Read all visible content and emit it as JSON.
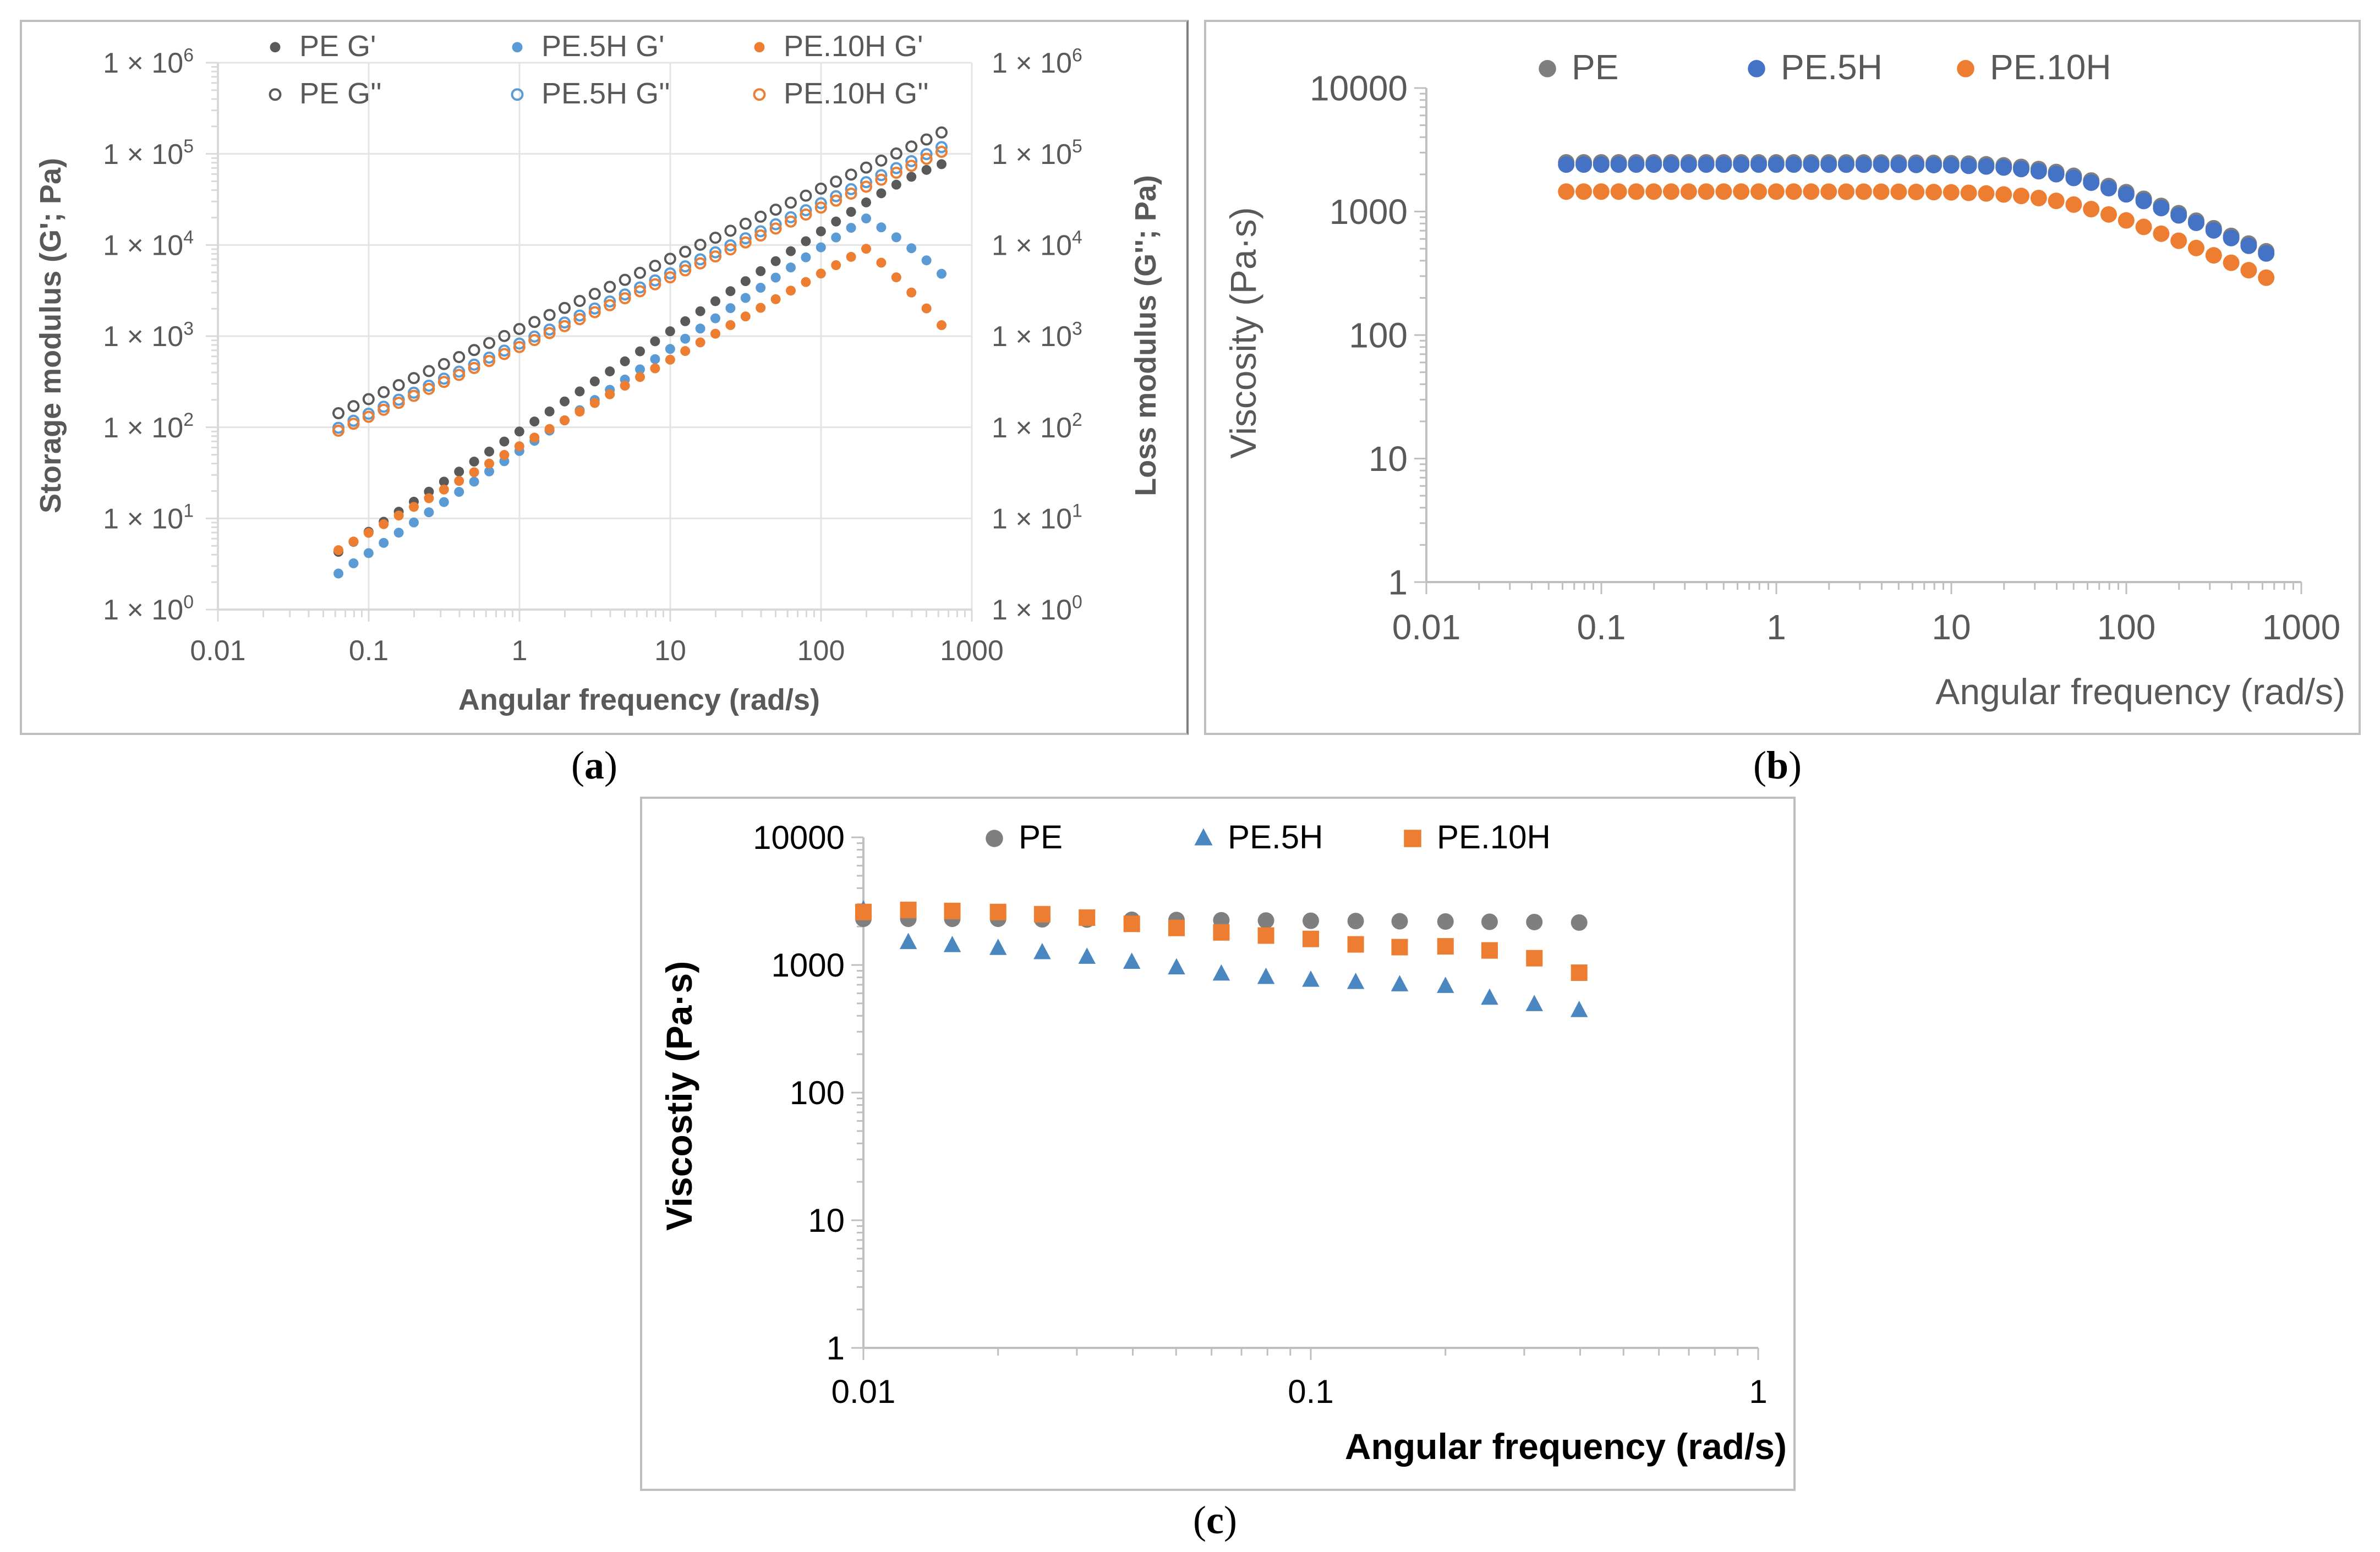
{
  "chart_data": [
    {
      "id": "a",
      "type": "scatter",
      "caption_letter": "a",
      "xscale": "log",
      "xlim": [
        0.01,
        1000
      ],
      "ylim": [
        1,
        1000000
      ],
      "xlabel": "Angular frequency (rad/s)",
      "ylabel": "Storage modulus (G'; Pa)",
      "y2label": "Loss modulus (G''; Pa)",
      "x_ticks": [
        {
          "v": 0.01,
          "label": "0.01"
        },
        {
          "v": 0.1,
          "label": "0.1"
        },
        {
          "v": 1,
          "label": "1"
        },
        {
          "v": 10,
          "label": "10"
        },
        {
          "v": 100,
          "label": "100"
        },
        {
          "v": 1000,
          "label": "1000"
        }
      ],
      "y_ticks": [
        {
          "v": 1,
          "label": "1 × 10",
          "exp": "0"
        },
        {
          "v": 10,
          "label": "1 × 10",
          "exp": "1"
        },
        {
          "v": 100,
          "label": "1 × 10",
          "exp": "2"
        },
        {
          "v": 1000,
          "label": "1 × 10",
          "exp": "3"
        },
        {
          "v": 10000,
          "label": "1 × 10",
          "exp": "4"
        },
        {
          "v": 100000,
          "label": "1 × 10",
          "exp": "5"
        },
        {
          "v": 1000000,
          "label": "1 × 10",
          "exp": "6"
        }
      ],
      "curves": [
        {
          "name": "PE G'",
          "color": "#595959",
          "marker": "filled",
          "x_start": 0.063,
          "x_end": 630,
          "n": 41,
          "formula": "gprime",
          "a": 90,
          "b": 1.1,
          "peak": 110000,
          "drop": 0
        },
        {
          "name": "PE.5H G'",
          "color": "#5b9bd5",
          "marker": "filled",
          "x_start": 0.063,
          "x_end": 630,
          "n": 41,
          "formula": "gprime",
          "a": 55,
          "b": 1.12,
          "peak": 60000,
          "drop": 0.9
        },
        {
          "name": "PE.10H G'",
          "color": "#ed7d31",
          "marker": "filled",
          "x_start": 0.063,
          "x_end": 630,
          "n": 41,
          "formula": "gprime_10h",
          "a": 62,
          "b": 0.95,
          "peak": 32000,
          "drop": 1.1
        },
        {
          "name": "PE G''",
          "color": "#595959",
          "marker": "open",
          "x_start": 0.063,
          "x_end": 630,
          "n": 41,
          "formula": "power",
          "a": 1200,
          "b": 0.77
        },
        {
          "name": "PE.5H G''",
          "color": "#5b9bd5",
          "marker": "open",
          "x_start": 0.063,
          "x_end": 630,
          "n": 41,
          "formula": "power",
          "a": 830,
          "b": 0.77
        },
        {
          "name": "PE.10H G''",
          "color": "#ed7d31",
          "marker": "open",
          "x_start": 0.063,
          "x_end": 630,
          "n": 41,
          "formula": "power",
          "a": 760,
          "b": 0.765
        }
      ],
      "legend": [
        {
          "label": "PE G'",
          "color": "#595959",
          "marker": "filled"
        },
        {
          "label": "PE.5H G'",
          "color": "#5b9bd5",
          "marker": "filled"
        },
        {
          "label": "PE.10H G'",
          "color": "#ed7d31",
          "marker": "filled"
        },
        {
          "label": "PE G''",
          "color": "#595959",
          "marker": "open"
        },
        {
          "label": "PE.5H G''",
          "color": "#5b9bd5",
          "marker": "open"
        },
        {
          "label": "PE.10H G''",
          "color": "#ed7d31",
          "marker": "open"
        }
      ]
    },
    {
      "id": "b",
      "type": "scatter",
      "caption_letter": "b",
      "xscale": "log",
      "xlim": [
        0.01,
        1000
      ],
      "ylim": [
        1,
        10000
      ],
      "xlabel": "Angular frequency (rad/s)",
      "ylabel": "Viscosity (Pa·s)",
      "x_ticks": [
        {
          "v": 0.01,
          "label": "0.01"
        },
        {
          "v": 0.1,
          "label": "0.1"
        },
        {
          "v": 1,
          "label": "1"
        },
        {
          "v": 10,
          "label": "10"
        },
        {
          "v": 100,
          "label": "100"
        },
        {
          "v": 1000,
          "label": "1000"
        }
      ],
      "y_ticks": [
        {
          "v": 1,
          "label": "1"
        },
        {
          "v": 10,
          "label": "10"
        },
        {
          "v": 100,
          "label": "100"
        },
        {
          "v": 1000,
          "label": "1000"
        },
        {
          "v": 10000,
          "label": "10000"
        }
      ],
      "curves": [
        {
          "name": "PE",
          "color": "#7f7f7f",
          "marker": "filled",
          "x_start": 0.063,
          "x_end": 630,
          "n": 41,
          "formula": "carreau",
          "eta0": 2500,
          "lambda": 0.022,
          "n_exp": 0.37
        },
        {
          "name": "PE.5H",
          "color": "#4472c4",
          "marker": "filled",
          "x_start": 0.063,
          "x_end": 630,
          "n": 41,
          "formula": "carreau",
          "eta0": 2400,
          "lambda": 0.022,
          "n_exp": 0.37
        },
        {
          "name": "PE.10H",
          "color": "#ed7d31",
          "marker": "filled",
          "x_start": 0.063,
          "x_end": 630,
          "n": 41,
          "formula": "carreau",
          "eta0": 1450,
          "lambda": 0.022,
          "n_exp": 0.39
        }
      ],
      "legend": [
        {
          "label": "PE",
          "color": "#7f7f7f",
          "marker": "filled"
        },
        {
          "label": "PE.5H",
          "color": "#4472c4",
          "marker": "filled"
        },
        {
          "label": "PE.10H",
          "color": "#ed7d31",
          "marker": "filled"
        }
      ]
    },
    {
      "id": "c",
      "type": "scatter",
      "caption_letter": "c",
      "xscale": "log",
      "xlim": [
        0.01,
        1
      ],
      "ylim": [
        1,
        10000
      ],
      "xlabel": "Angular frequency (rad/s)",
      "ylabel": "Viscostiy (Pa·s)",
      "x_ticks": [
        {
          "v": 0.01,
          "label": "0.01"
        },
        {
          "v": 0.1,
          "label": "0.1"
        },
        {
          "v": 1,
          "label": "1"
        }
      ],
      "y_ticks": [
        {
          "v": 1,
          "label": "1"
        },
        {
          "v": 10,
          "label": "10"
        },
        {
          "v": 100,
          "label": "100"
        },
        {
          "v": 1000,
          "label": "1000"
        },
        {
          "v": 10000,
          "label": "10000"
        }
      ],
      "x": [
        0.01,
        0.0126,
        0.0158,
        0.02,
        0.0251,
        0.0316,
        0.0398,
        0.0501,
        0.0631,
        0.0794,
        0.1,
        0.126,
        0.158,
        0.2,
        0.251,
        0.316,
        0.398
      ],
      "series": [
        {
          "name": "PE",
          "color": "#7f7f7f",
          "marker": "circle",
          "values": [
            2300,
            2300,
            2300,
            2300,
            2280,
            2270,
            2260,
            2250,
            2240,
            2230,
            2220,
            2210,
            2200,
            2190,
            2180,
            2170,
            2150
          ]
        },
        {
          "name": "PE.5H",
          "color": "#4a86c0",
          "marker": "triangle",
          "values": [
            2700,
            1500,
            1420,
            1350,
            1250,
            1150,
            1050,
            950,
            850,
            800,
            760,
            730,
            700,
            680,
            550,
            490,
            440
          ]
        },
        {
          "name": "PE.10H",
          "color": "#ed7d31",
          "marker": "square",
          "values": [
            2600,
            2700,
            2650,
            2600,
            2500,
            2350,
            2100,
            1950,
            1800,
            1700,
            1600,
            1450,
            1380,
            1400,
            1300,
            1130,
            870
          ]
        }
      ],
      "legend": [
        {
          "label": "PE",
          "color": "#7f7f7f",
          "marker": "circle"
        },
        {
          "label": "PE.5H",
          "color": "#4a86c0",
          "marker": "triangle"
        },
        {
          "label": "PE.10H",
          "color": "#ed7d31",
          "marker": "square"
        }
      ]
    }
  ]
}
